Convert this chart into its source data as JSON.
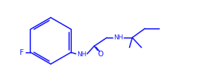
{
  "bg_color": "#ffffff",
  "line_color": "#1a1aff",
  "text_color": "#1a1aff",
  "f_label": "F",
  "nh_label_bottom": "NH",
  "o_label": "O",
  "nh_label_top": "NH",
  "figsize": [
    3.12,
    1.18
  ],
  "dpi": 100
}
